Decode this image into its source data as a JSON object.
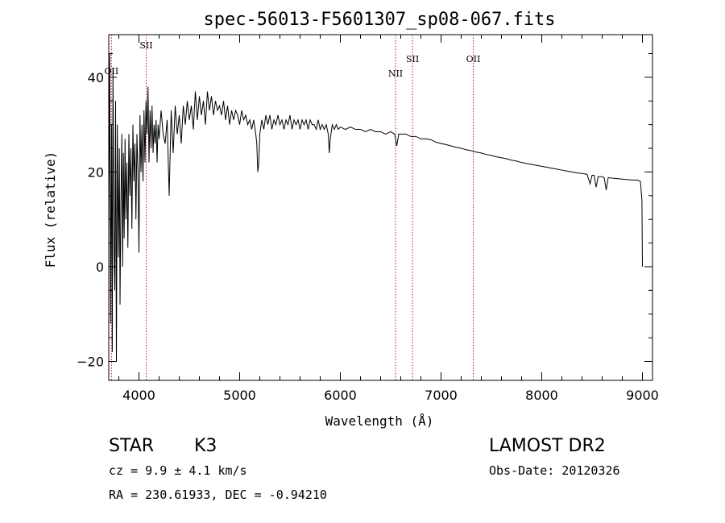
{
  "chart_data": {
    "type": "line",
    "title": "spec-56013-F5601307_sp08-067.fits",
    "xlabel": "Wavelength (Å)",
    "ylabel": "Flux (relative)",
    "xlim": [
      3700,
      9100
    ],
    "ylim": [
      -24,
      49
    ],
    "x_ticks": [
      4000,
      5000,
      6000,
      7000,
      8000,
      9000
    ],
    "y_ticks": [
      -20,
      0,
      20,
      40
    ],
    "grid": false,
    "series": [
      {
        "values": [
          [
            3700,
            8
          ],
          [
            3710,
            45
          ],
          [
            3718,
            -12
          ],
          [
            3728,
            30
          ],
          [
            3735,
            -18
          ],
          [
            3742,
            42
          ],
          [
            3752,
            5
          ],
          [
            3760,
            -5
          ],
          [
            3768,
            35
          ],
          [
            3776,
            -20
          ],
          [
            3785,
            30
          ],
          [
            3795,
            2
          ],
          [
            3805,
            25
          ],
          [
            3812,
            -8
          ],
          [
            3820,
            12
          ],
          [
            3830,
            28
          ],
          [
            3838,
            0
          ],
          [
            3846,
            24
          ],
          [
            3853,
            6
          ],
          [
            3862,
            27
          ],
          [
            3870,
            10
          ],
          [
            3880,
            22
          ],
          [
            3890,
            4
          ],
          [
            3900,
            28
          ],
          [
            3910,
            15
          ],
          [
            3920,
            25
          ],
          [
            3930,
            8
          ],
          [
            3940,
            30
          ],
          [
            3950,
            18
          ],
          [
            3960,
            26
          ],
          [
            3970,
            10
          ],
          [
            3980,
            28
          ],
          [
            3990,
            20
          ],
          [
            4000,
            3
          ],
          [
            4010,
            32
          ],
          [
            4020,
            20
          ],
          [
            4030,
            30
          ],
          [
            4040,
            18
          ],
          [
            4050,
            33
          ],
          [
            4060,
            22
          ],
          [
            4070,
            35
          ],
          [
            4080,
            28
          ],
          [
            4090,
            38
          ],
          [
            4100,
            22
          ],
          [
            4110,
            33
          ],
          [
            4120,
            25
          ],
          [
            4130,
            34
          ],
          [
            4140,
            24
          ],
          [
            4150,
            30
          ],
          [
            4160,
            26
          ],
          [
            4170,
            31
          ],
          [
            4180,
            22
          ],
          [
            4190,
            30
          ],
          [
            4200,
            27
          ],
          [
            4220,
            33
          ],
          [
            4240,
            28
          ],
          [
            4260,
            26
          ],
          [
            4280,
            31
          ],
          [
            4300,
            15
          ],
          [
            4320,
            33
          ],
          [
            4340,
            24
          ],
          [
            4360,
            34
          ],
          [
            4380,
            28
          ],
          [
            4400,
            32
          ],
          [
            4420,
            26
          ],
          [
            4440,
            34
          ],
          [
            4460,
            30
          ],
          [
            4480,
            35
          ],
          [
            4500,
            31
          ],
          [
            4520,
            34
          ],
          [
            4540,
            29
          ],
          [
            4560,
            37
          ],
          [
            4580,
            31
          ],
          [
            4600,
            36
          ],
          [
            4620,
            32
          ],
          [
            4640,
            35
          ],
          [
            4660,
            30
          ],
          [
            4680,
            37
          ],
          [
            4700,
            33
          ],
          [
            4720,
            36
          ],
          [
            4740,
            32
          ],
          [
            4760,
            35
          ],
          [
            4780,
            33
          ],
          [
            4800,
            34
          ],
          [
            4820,
            32
          ],
          [
            4840,
            35
          ],
          [
            4860,
            31
          ],
          [
            4880,
            34
          ],
          [
            4900,
            30
          ],
          [
            4920,
            33
          ],
          [
            4940,
            31
          ],
          [
            4960,
            33
          ],
          [
            4980,
            32
          ],
          [
            5000,
            30
          ],
          [
            5020,
            33
          ],
          [
            5040,
            31
          ],
          [
            5060,
            32
          ],
          [
            5080,
            30
          ],
          [
            5100,
            31
          ],
          [
            5120,
            29
          ],
          [
            5140,
            31
          ],
          [
            5160,
            28
          ],
          [
            5170,
            26
          ],
          [
            5180,
            20
          ],
          [
            5190,
            22
          ],
          [
            5200,
            28
          ],
          [
            5220,
            31
          ],
          [
            5240,
            29
          ],
          [
            5260,
            32
          ],
          [
            5280,
            30
          ],
          [
            5300,
            32
          ],
          [
            5320,
            29
          ],
          [
            5340,
            31
          ],
          [
            5360,
            30
          ],
          [
            5380,
            32
          ],
          [
            5400,
            30
          ],
          [
            5420,
            31
          ],
          [
            5440,
            29
          ],
          [
            5460,
            31
          ],
          [
            5480,
            30
          ],
          [
            5500,
            32
          ],
          [
            5520,
            29
          ],
          [
            5540,
            31
          ],
          [
            5560,
            30
          ],
          [
            5580,
            31
          ],
          [
            5600,
            29
          ],
          [
            5620,
            31
          ],
          [
            5640,
            30
          ],
          [
            5660,
            31
          ],
          [
            5680,
            29
          ],
          [
            5700,
            31
          ],
          [
            5720,
            30
          ],
          [
            5740,
            30
          ],
          [
            5760,
            29
          ],
          [
            5780,
            31
          ],
          [
            5800,
            29
          ],
          [
            5820,
            30
          ],
          [
            5840,
            29
          ],
          [
            5860,
            30
          ],
          [
            5880,
            28
          ],
          [
            5890,
            24
          ],
          [
            5900,
            27
          ],
          [
            5920,
            30
          ],
          [
            5940,
            29
          ],
          [
            5960,
            30
          ],
          [
            5980,
            29
          ],
          [
            6000,
            29.5
          ],
          [
            6050,
            29
          ],
          [
            6100,
            29.5
          ],
          [
            6150,
            29
          ],
          [
            6200,
            29
          ],
          [
            6250,
            28.5
          ],
          [
            6300,
            29
          ],
          [
            6350,
            28.5
          ],
          [
            6400,
            28.5
          ],
          [
            6450,
            28
          ],
          [
            6500,
            28.5
          ],
          [
            6540,
            28
          ],
          [
            6560,
            25.5
          ],
          [
            6580,
            28
          ],
          [
            6600,
            28
          ],
          [
            6650,
            28
          ],
          [
            6700,
            27.5
          ],
          [
            6750,
            27.5
          ],
          [
            6800,
            27
          ],
          [
            6850,
            27
          ],
          [
            6900,
            26.8
          ],
          [
            6950,
            26.3
          ],
          [
            7000,
            26
          ],
          [
            7050,
            25.8
          ],
          [
            7100,
            25.5
          ],
          [
            7150,
            25.2
          ],
          [
            7200,
            25
          ],
          [
            7250,
            24.7
          ],
          [
            7300,
            24.5
          ],
          [
            7350,
            24.2
          ],
          [
            7400,
            24
          ],
          [
            7450,
            23.7
          ],
          [
            7500,
            23.5
          ],
          [
            7550,
            23.2
          ],
          [
            7600,
            23
          ],
          [
            7650,
            22.8
          ],
          [
            7700,
            22.5
          ],
          [
            7750,
            22.3
          ],
          [
            7800,
            22
          ],
          [
            7850,
            21.8
          ],
          [
            7900,
            21.6
          ],
          [
            7950,
            21.4
          ],
          [
            8000,
            21.2
          ],
          [
            8050,
            21
          ],
          [
            8100,
            20.8
          ],
          [
            8150,
            20.6
          ],
          [
            8200,
            20.4
          ],
          [
            8250,
            20.2
          ],
          [
            8300,
            20
          ],
          [
            8350,
            19.8
          ],
          [
            8400,
            19.7
          ],
          [
            8450,
            19.5
          ],
          [
            8480,
            17.5
          ],
          [
            8500,
            19.3
          ],
          [
            8520,
            19.3
          ],
          [
            8540,
            16.8
          ],
          [
            8560,
            19
          ],
          [
            8600,
            19
          ],
          [
            8620,
            18.8
          ],
          [
            8640,
            16.2
          ],
          [
            8660,
            18.8
          ],
          [
            8700,
            18.7
          ],
          [
            8750,
            18.6
          ],
          [
            8800,
            18.5
          ],
          [
            8850,
            18.4
          ],
          [
            8900,
            18.3
          ],
          [
            8950,
            18.3
          ],
          [
            8980,
            18
          ],
          [
            8995,
            14
          ],
          [
            9000,
            0
          ]
        ]
      }
    ],
    "lines": [
      {
        "label": "OII",
        "x": 3727
      },
      {
        "label": "SII",
        "x": 4072
      },
      {
        "label": "NII",
        "x": 6548
      },
      {
        "label": "SII",
        "x": 6717
      },
      {
        "label": "OII",
        "x": 7320
      }
    ]
  },
  "info": {
    "object_class": "STAR",
    "subclass": "K3",
    "cz": "cz = 9.9 ± 4.1 km/s",
    "coords": "RA = 230.61933, DEC =  -0.94210",
    "survey": "LAMOST DR2",
    "obs_date": "Obs-Date: 20120326"
  }
}
